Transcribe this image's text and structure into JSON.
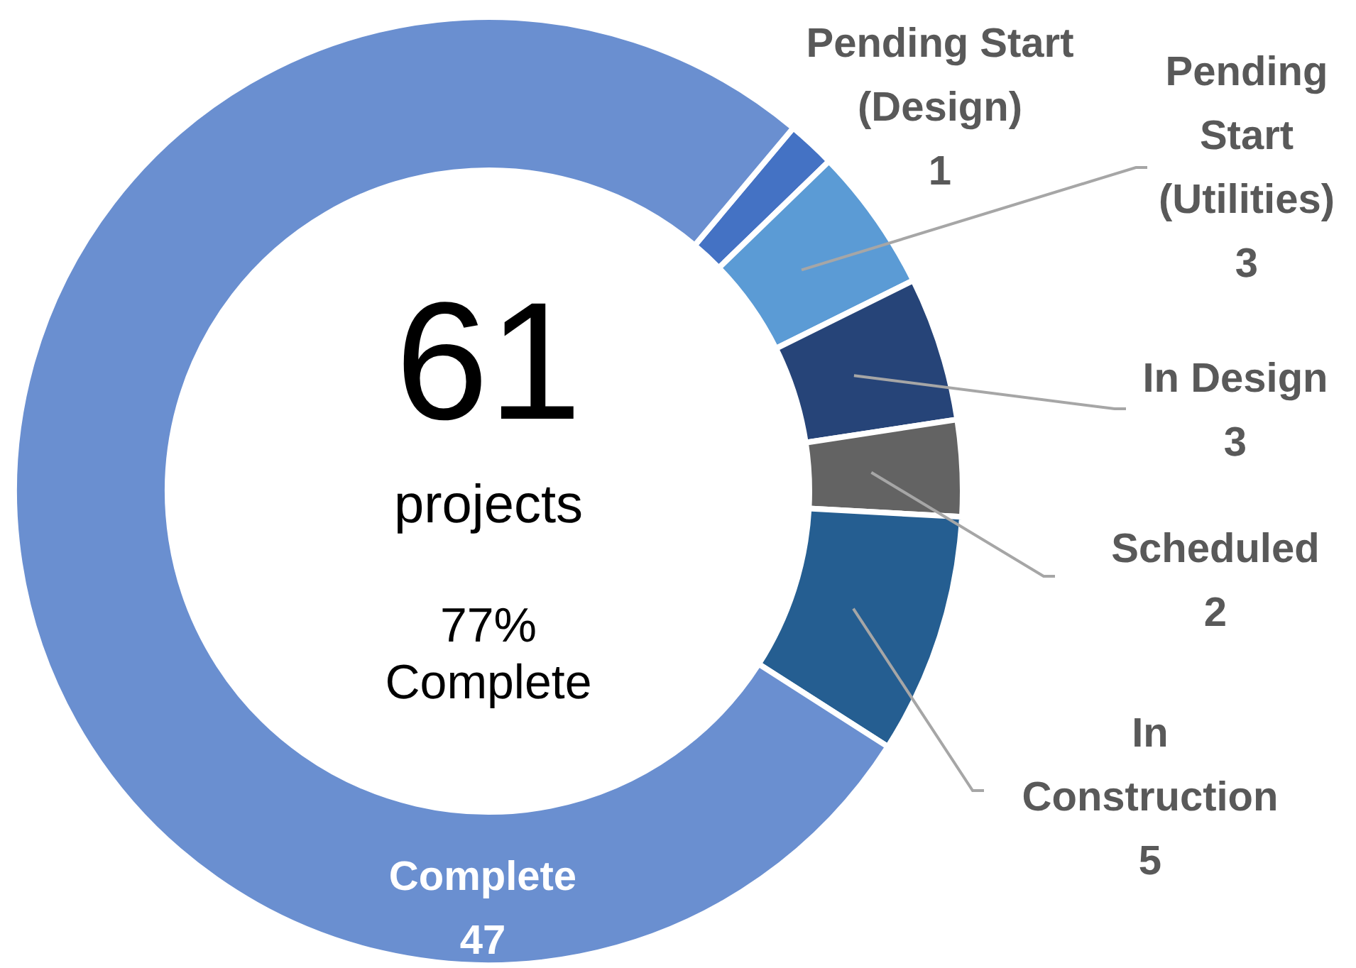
{
  "chart_data": {
    "type": "donut",
    "categories": [
      "Pending Start (Design)",
      "Pending Start (Utilities)",
      "In Design",
      "Scheduled",
      "In Construction",
      "Complete"
    ],
    "values": [
      1,
      3,
      3,
      2,
      5,
      47
    ],
    "colors": [
      "#4472c4",
      "#5b9bd5",
      "#264478",
      "#636363",
      "#255e91",
      "#6a8fd0"
    ],
    "data_labels": true,
    "annotations": [
      "61",
      "projects",
      "77% Complete"
    ]
  }
}
